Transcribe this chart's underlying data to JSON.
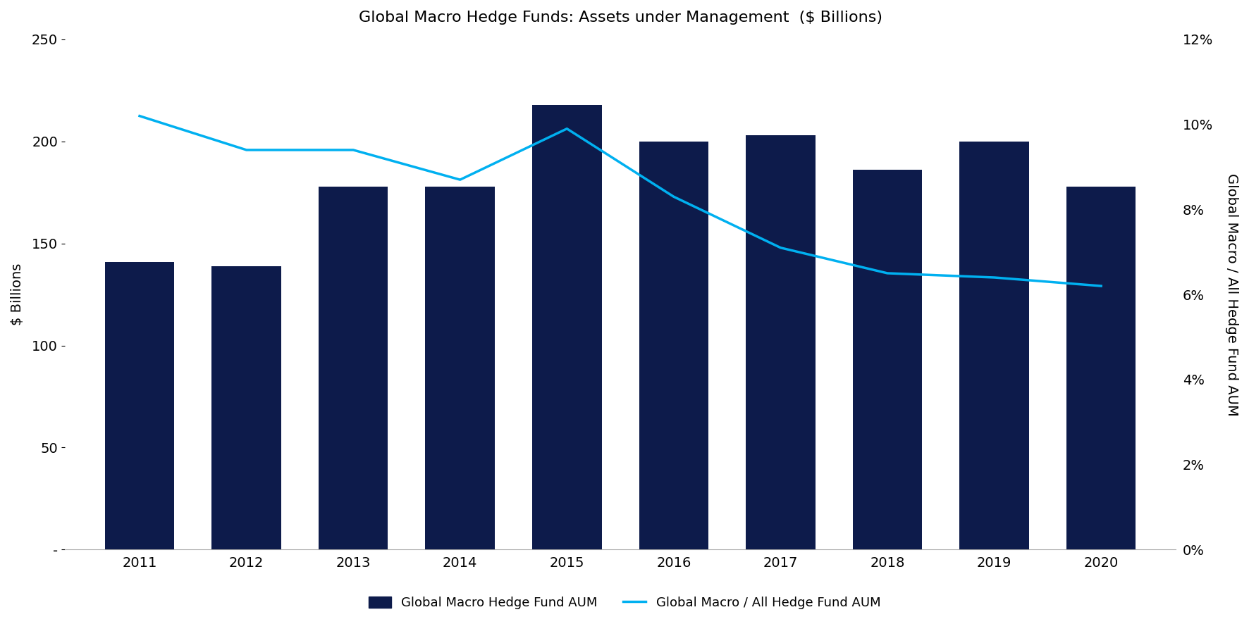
{
  "title": "Global Macro Hedge Funds: Assets under Management  ($ Billions)",
  "years": [
    2011,
    2012,
    2013,
    2014,
    2015,
    2016,
    2017,
    2018,
    2019,
    2020
  ],
  "bar_values": [
    141,
    139,
    178,
    178,
    218,
    200,
    203,
    186,
    200,
    178
  ],
  "line_values": [
    10.2,
    9.4,
    9.4,
    8.7,
    9.9,
    8.3,
    7.1,
    6.5,
    6.4,
    6.2
  ],
  "bar_color": "#0d1b4b",
  "line_color": "#00b0f0",
  "ylabel_left": "$ Billions",
  "ylabel_right": "Global Macro / All Hedge Fund AUM",
  "ylim_left": [
    0,
    250
  ],
  "ylim_right": [
    0,
    12
  ],
  "yticks_left": [
    0,
    50,
    100,
    150,
    200,
    250
  ],
  "ytick_labels_left": [
    "-",
    "50",
    "100",
    "150",
    "200",
    "250"
  ],
  "yticks_right": [
    0,
    2,
    4,
    6,
    8,
    10,
    12
  ],
  "ytick_labels_right": [
    "0%",
    "2%",
    "4%",
    "6%",
    "8%",
    "10%",
    "12%"
  ],
  "legend_label_bar": "Global Macro Hedge Fund AUM",
  "legend_label_line": "Global Macro / All Hedge Fund AUM",
  "background_color": "#ffffff",
  "bar_width": 0.65,
  "xlim": [
    2010.3,
    2020.7
  ]
}
